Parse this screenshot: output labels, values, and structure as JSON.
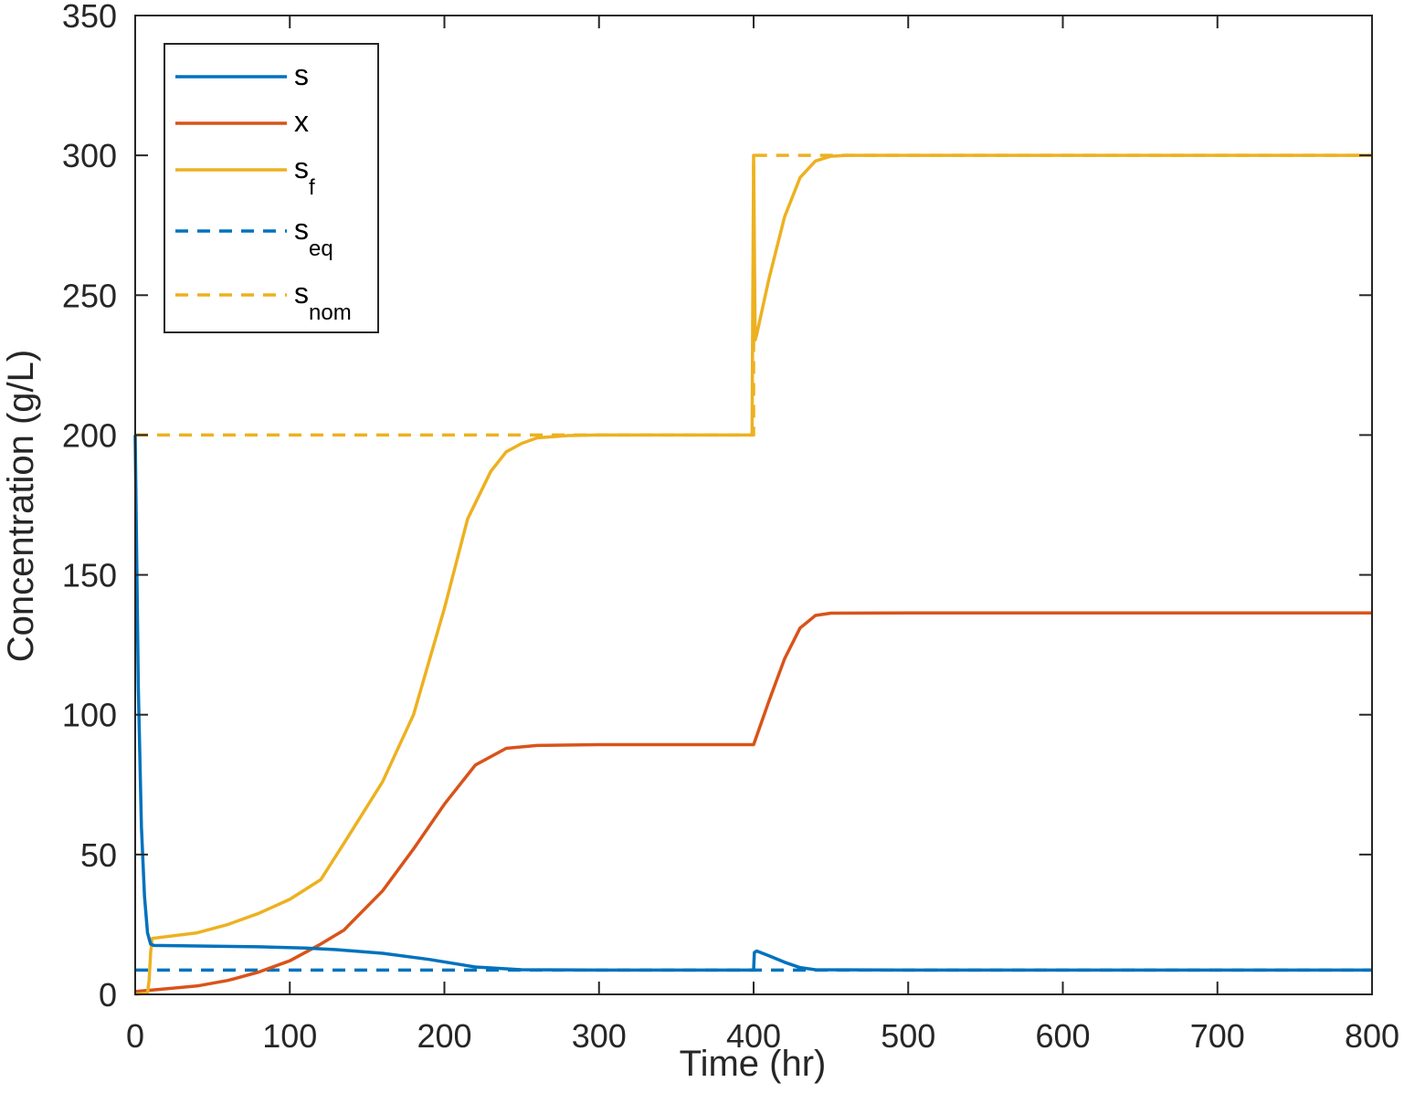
{
  "chart_data": {
    "type": "line",
    "xlabel": "Time (hr)",
    "ylabel": "Concentration (g/L)",
    "xlim": [
      0,
      800
    ],
    "ylim": [
      0,
      350
    ],
    "xticks": [
      0,
      100,
      200,
      300,
      400,
      500,
      600,
      700,
      800
    ],
    "yticks": [
      0,
      50,
      100,
      150,
      200,
      250,
      300,
      350
    ],
    "grid": false,
    "legend_position": "top-left",
    "colors": {
      "blue": "#0072BD",
      "orange": "#D95319",
      "yellow": "#EDB120"
    },
    "series": [
      {
        "name": "s",
        "legend_base": "s",
        "legend_sub": "",
        "color": "#0072BD",
        "style": "solid",
        "x": [
          0,
          2,
          4,
          6,
          8,
          10,
          12,
          40,
          80,
          110,
          130,
          160,
          190,
          220,
          250,
          300,
          400,
          400.5,
          402,
          410,
          420,
          430,
          440,
          500,
          600,
          700,
          800
        ],
        "y": [
          200,
          110,
          60,
          35,
          22,
          18,
          17.5,
          17.3,
          17,
          16.6,
          16,
          14.7,
          12.5,
          9.8,
          8.8,
          8.7,
          8.7,
          15,
          15.5,
          13.8,
          11.5,
          9.6,
          8.8,
          8.7,
          8.7,
          8.7,
          8.7
        ]
      },
      {
        "name": "x",
        "legend_base": "x",
        "legend_sub": "",
        "color": "#D95319",
        "style": "solid",
        "x": [
          0,
          10,
          20,
          40,
          60,
          80,
          100,
          120,
          135,
          160,
          180,
          200,
          220,
          240,
          260,
          300,
          400,
          410,
          420,
          430,
          440,
          450,
          500,
          600,
          700,
          800
        ],
        "y": [
          1,
          1.5,
          2,
          3,
          5,
          8,
          12,
          18,
          23,
          37,
          52,
          68,
          82,
          88,
          89,
          89.3,
          89.3,
          105,
          120,
          131,
          135.5,
          136.3,
          136.4,
          136.4,
          136.4,
          136.4
        ],
        "dashed_companion": false
      },
      {
        "name": "sf",
        "legend_base": "s",
        "legend_sub": "f",
        "color": "#EDB120",
        "style": "solid",
        "x": [
          0,
          8,
          9,
          10,
          11,
          40,
          60,
          80,
          100,
          120,
          135,
          160,
          180,
          200,
          215,
          230,
          240,
          250,
          260,
          280,
          300,
          399,
          400,
          401,
          402,
          410,
          420,
          430,
          440,
          450,
          460,
          500,
          600,
          700,
          800
        ],
        "y": [
          0,
          0.5,
          5,
          15,
          20,
          22,
          25,
          29,
          34,
          41,
          54,
          76,
          100,
          138,
          170,
          187,
          194,
          197,
          199,
          199.8,
          200,
          200,
          300,
          234,
          236,
          256,
          278,
          292,
          298,
          299.7,
          300,
          300,
          300,
          300,
          300
        ]
      },
      {
        "name": "seq",
        "legend_base": "s",
        "legend_sub": "eq",
        "color": "#0072BD",
        "style": "dashed",
        "x": [
          0,
          800
        ],
        "y": [
          8.7,
          8.7
        ]
      },
      {
        "name": "snom",
        "legend_base": "s",
        "legend_sub": "nom",
        "color": "#EDB120",
        "style": "dashed",
        "x": [
          0,
          400,
          400,
          800
        ],
        "y": [
          200,
          200,
          300,
          300
        ]
      }
    ]
  }
}
